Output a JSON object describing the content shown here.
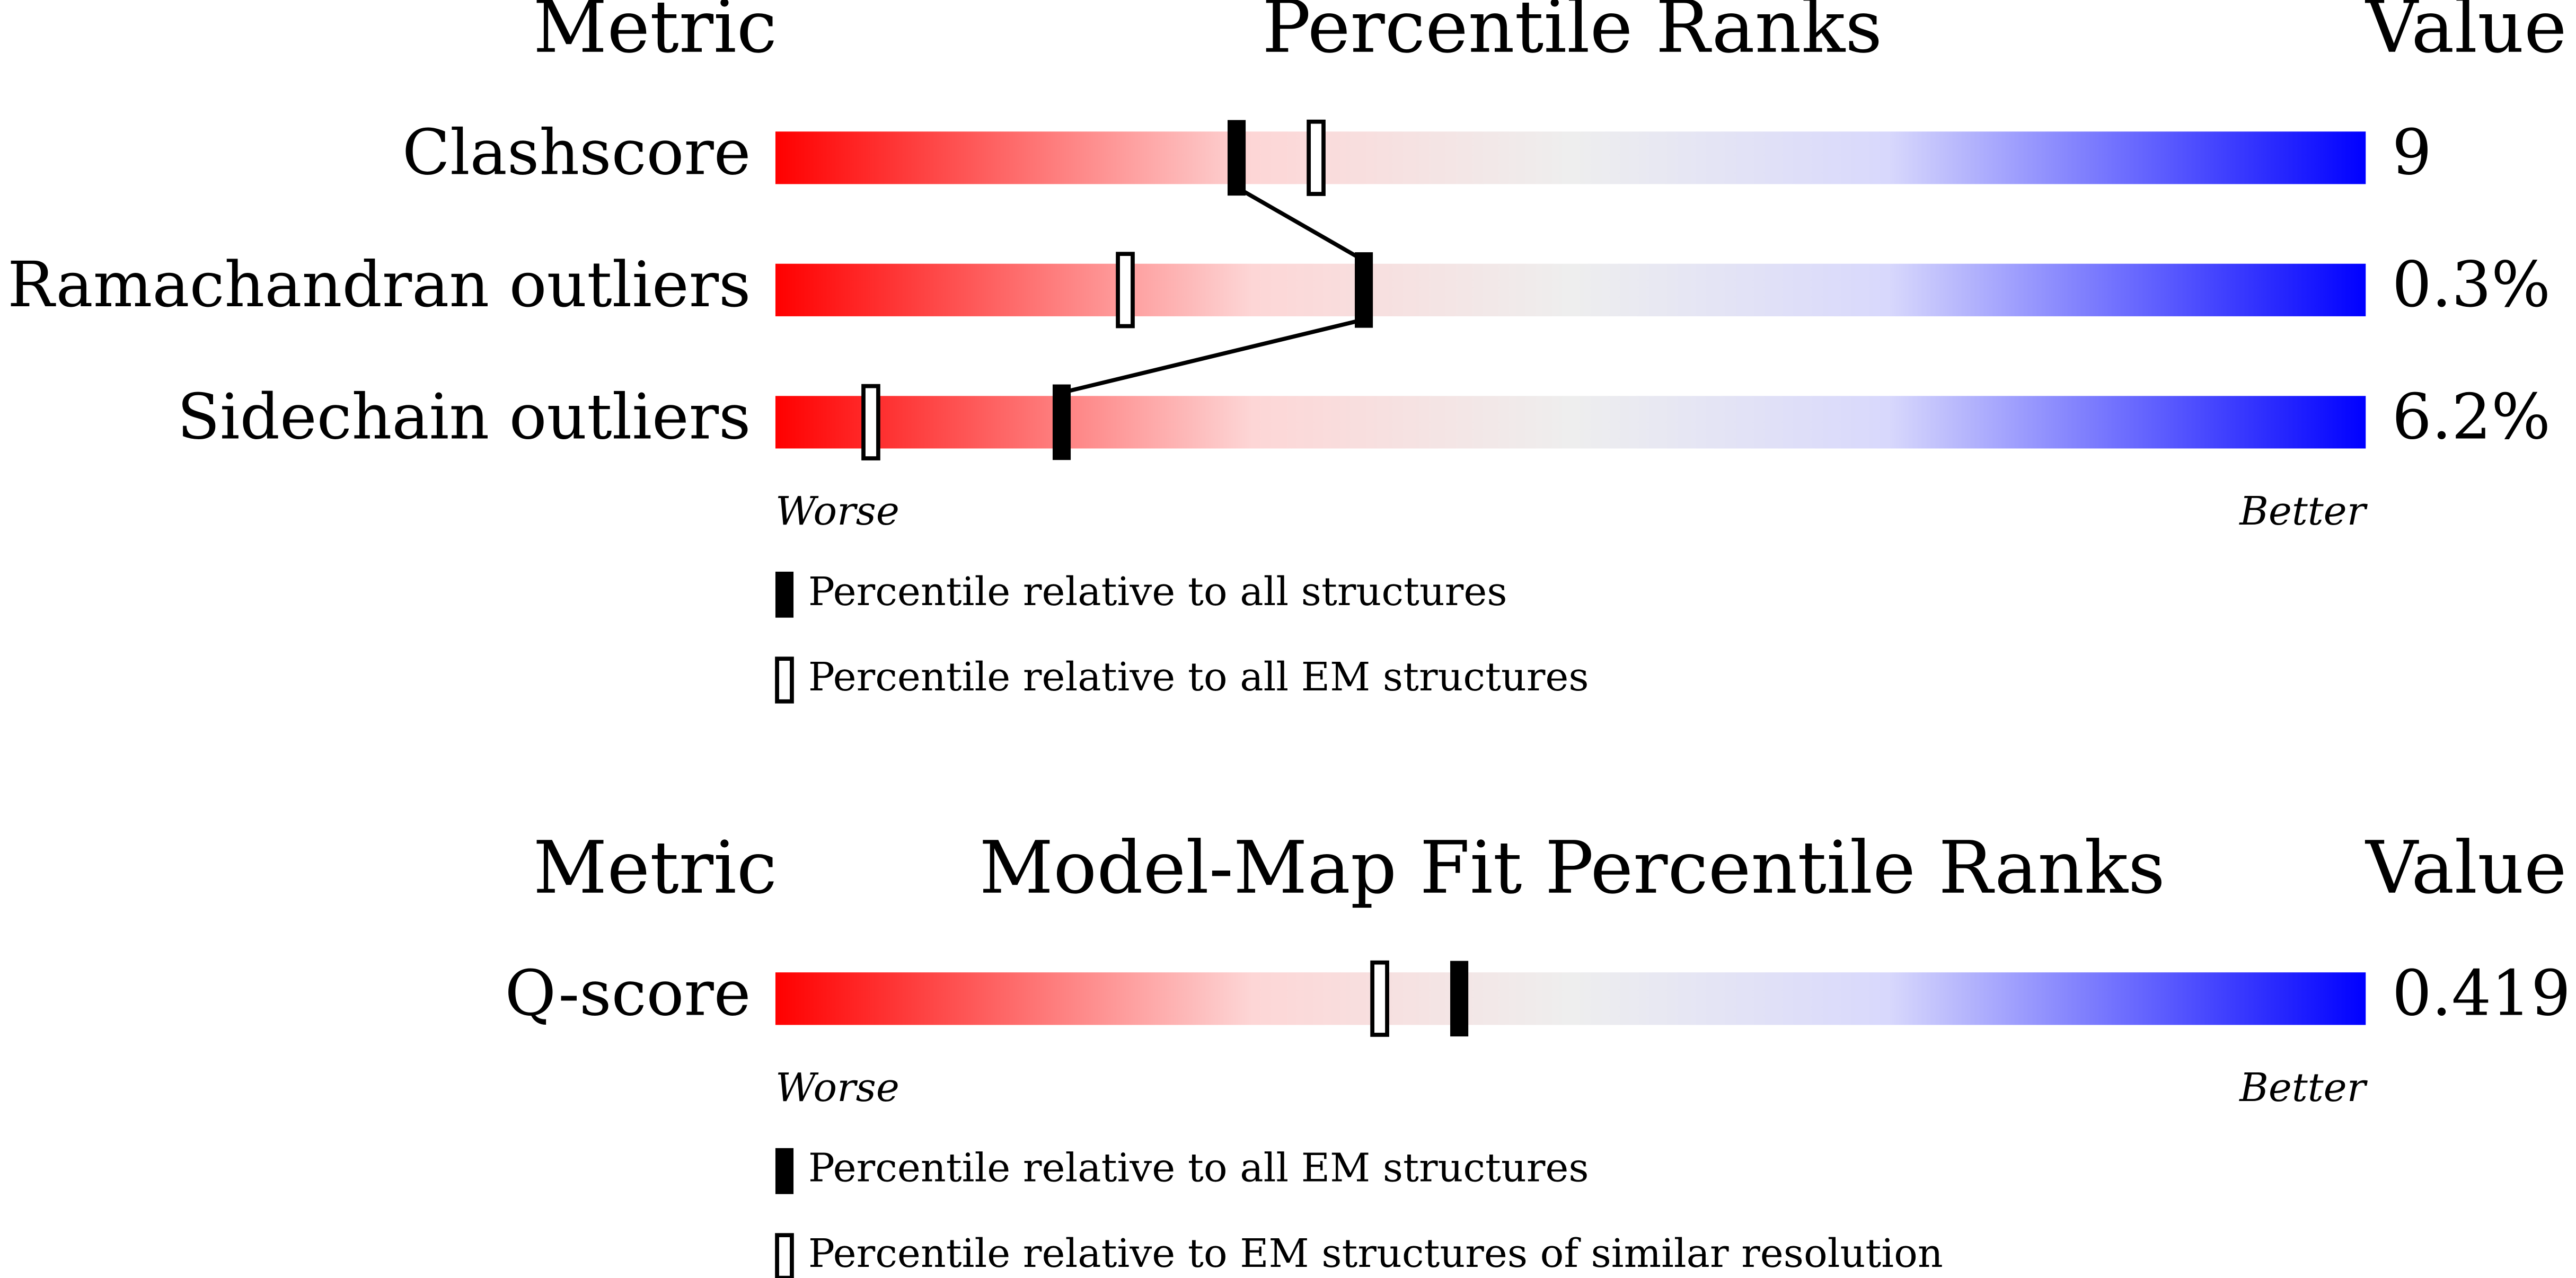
{
  "chart_data": [
    {
      "type": "percentile",
      "metric_header": "Metric",
      "title": "Percentile Ranks",
      "value_header": "Value",
      "categories": [
        "Clashscore",
        "Ramachandran outliers",
        "Sidechain outliers"
      ],
      "metric_values": [
        "9",
        "0.3%",
        "6.2%"
      ],
      "series": [
        {
          "name": "Percentile relative to all structures",
          "style": "filled",
          "color": "#000000",
          "values": [
            29,
            37,
            18
          ]
        },
        {
          "name": "Percentile relative to all EM structures",
          "style": "open",
          "color": "#000000",
          "values": [
            34,
            22,
            6
          ]
        }
      ],
      "xlim": [
        0,
        100
      ],
      "low_label": "Worse",
      "high_label": "Better",
      "connect_filled": true
    },
    {
      "type": "percentile",
      "metric_header": "Metric",
      "title": "Model-Map Fit Percentile Ranks",
      "value_header": "Value",
      "categories": [
        "Q-score"
      ],
      "metric_values": [
        "0.419"
      ],
      "series": [
        {
          "name": "Percentile relative to all EM structures",
          "style": "filled",
          "color": "#000000",
          "values": [
            43
          ]
        },
        {
          "name": "Percentile relative to EM structures of similar resolution",
          "style": "open",
          "color": "#000000",
          "values": [
            38
          ]
        }
      ],
      "xlim": [
        0,
        100
      ],
      "low_label": "Worse",
      "high_label": "Better",
      "connect_filled": true
    }
  ]
}
